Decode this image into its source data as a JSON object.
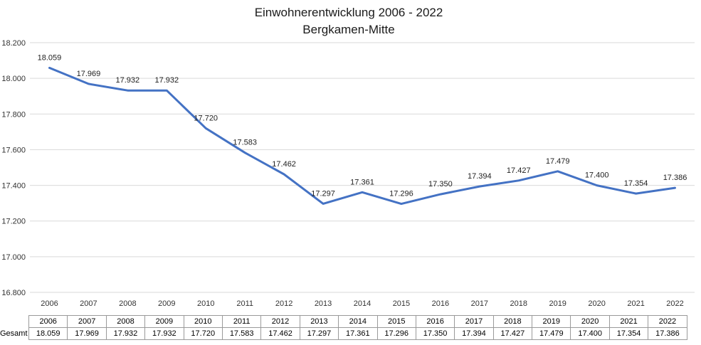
{
  "chart_data": {
    "type": "line",
    "title": "Einwohnerentwicklung 2006 - 2022",
    "subtitle": "Bergkamen-Mitte",
    "categories": [
      "2006",
      "2007",
      "2008",
      "2009",
      "2010",
      "2011",
      "2012",
      "2013",
      "2014",
      "2015",
      "2016",
      "2017",
      "2018",
      "2019",
      "2020",
      "2021",
      "2022"
    ],
    "series": [
      {
        "name": "Gesamt",
        "values": [
          18059,
          17969,
          17932,
          17932,
          17720,
          17583,
          17462,
          17297,
          17361,
          17296,
          17350,
          17394,
          17427,
          17479,
          17400,
          17354,
          17386
        ],
        "labels": [
          "18.059",
          "17.969",
          "17.932",
          "17.932",
          "17.720",
          "17.583",
          "17.462",
          "17.297",
          "17.361",
          "17.296",
          "17.350",
          "17.394",
          "17.427",
          "17.479",
          "17.400",
          "17.354",
          "17.386"
        ]
      }
    ],
    "ylim": [
      16800,
      18200
    ],
    "yticks": [
      16800,
      17000,
      17200,
      17400,
      17600,
      17800,
      18000,
      18200
    ],
    "ytick_labels": [
      "16.800",
      "17.000",
      "17.200",
      "17.400",
      "17.600",
      "17.800",
      "18.000",
      "18.200"
    ],
    "grid": true,
    "line_color": "#4472C4",
    "data_table": true
  }
}
